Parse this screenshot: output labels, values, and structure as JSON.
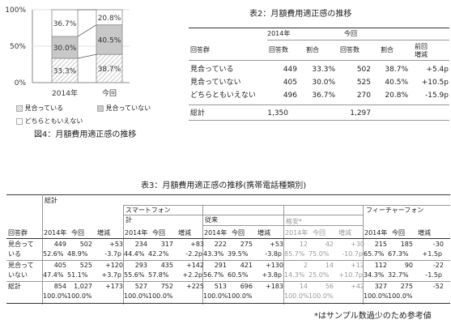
{
  "chart_data": {
    "type": "bar",
    "stacked": true,
    "percent_stacked": true,
    "categories": [
      "2014年",
      "今回"
    ],
    "series": [
      {
        "name": "見合っている",
        "values": [
          33.3,
          38.7
        ],
        "fill": "hatch"
      },
      {
        "name": "見合っていない",
        "values": [
          30.0,
          40.5
        ],
        "fill": "#c8c8c8"
      },
      {
        "name": "どちらともいえない",
        "values": [
          36.7,
          20.8
        ],
        "fill": "#ffffff"
      }
    ],
    "yticks": [
      "0%",
      "50%",
      "100%"
    ],
    "ylim": [
      0,
      100
    ],
    "caption": "図4：月額費用適正感の推移",
    "connector_lines": true,
    "colors": {
      "hatch_fg": "#bdbdbd",
      "gray_segment": "#c8c8c8",
      "outline": "#888888"
    }
  },
  "table2": {
    "title": "表2：月額費用適正感の推移",
    "year_headers": [
      "2014年",
      "今回"
    ],
    "columns": [
      "回答群",
      "回答数",
      "割合",
      "回答数",
      "割合",
      "前回",
      "増減"
    ],
    "rows": [
      {
        "label": "見合っている",
        "c1": "449",
        "c2": "33.3%",
        "c3": "502",
        "c4": "38.7%",
        "c5": "+5.4p"
      },
      {
        "label": "見合っていない",
        "c1": "405",
        "c2": "30.0%",
        "c3": "525",
        "c4": "40.5%",
        "c5": "+10.5p"
      },
      {
        "label": "どちらともいえない",
        "c1": "496",
        "c2": "36.7%",
        "c3": "270",
        "c4": "20.8%",
        "c5": "-15.9p"
      }
    ],
    "total": {
      "label": "総計",
      "c1": "1,350",
      "c3": "1,297"
    }
  },
  "table3": {
    "title": "表3：月額費用適正感の推移(携帯電話種類別)",
    "h_total": "総計",
    "h_smartphone": "スマートフォン",
    "h_feature": "フィーチャーフォン",
    "h_kei": "計",
    "h_jurai": "従来",
    "h_kakuyasu": "格安*",
    "h_answer": "回答群",
    "h_year": "2014年",
    "h_now": "今回",
    "h_diff": "増減",
    "rows": [
      {
        "label1": "見合って",
        "label2": "いる",
        "tot": [
          "449",
          "502",
          "+53",
          "52.6%",
          "48.9%",
          "-3.7p"
        ],
        "kei": [
          "234",
          "317",
          "+83",
          "44.4%",
          "42.2%",
          "-2.2p"
        ],
        "jurai": [
          "222",
          "275",
          "+53",
          "43.3%",
          "39.5%",
          "-3.8p"
        ],
        "kaku": [
          "12",
          "42",
          "+30",
          "85.7%",
          "75.0%",
          "-10.7p"
        ],
        "feat": [
          "215",
          "185",
          "-30",
          "65.7%",
          "67.3%",
          "+1.5p"
        ]
      },
      {
        "label1": "見合って",
        "label2": "いない",
        "tot": [
          "405",
          "525",
          "+120",
          "47.4%",
          "51.1%",
          "+3.7p"
        ],
        "kei": [
          "293",
          "435",
          "+142",
          "55.6%",
          "57.8%",
          "+2.2p"
        ],
        "jurai": [
          "291",
          "421",
          "+130",
          "56.7%",
          "60.5%",
          "+3.8p"
        ],
        "kaku": [
          "2",
          "14",
          "+12",
          "14.3%",
          "25.0%",
          "+10.7p"
        ],
        "feat": [
          "112",
          "90",
          "-22",
          "34.3%",
          "32.7%",
          "-1.5p"
        ]
      }
    ],
    "total_row": {
      "label": "総計",
      "tot": [
        "854",
        "1,027",
        "+173",
        "100.0%",
        "100.0%"
      ],
      "kei": [
        "527",
        "752",
        "+225",
        "100.0%",
        "100.0%"
      ],
      "jurai": [
        "513",
        "696",
        "+183",
        "100.0%",
        "100.0%"
      ],
      "kaku": [
        "14",
        "56",
        "+42",
        "100.0%",
        "100.0%"
      ],
      "feat": [
        "327",
        "275",
        "-52",
        "100.0%",
        "100.0%"
      ]
    },
    "footnote": "*はサンプル数過少のため参考値"
  }
}
